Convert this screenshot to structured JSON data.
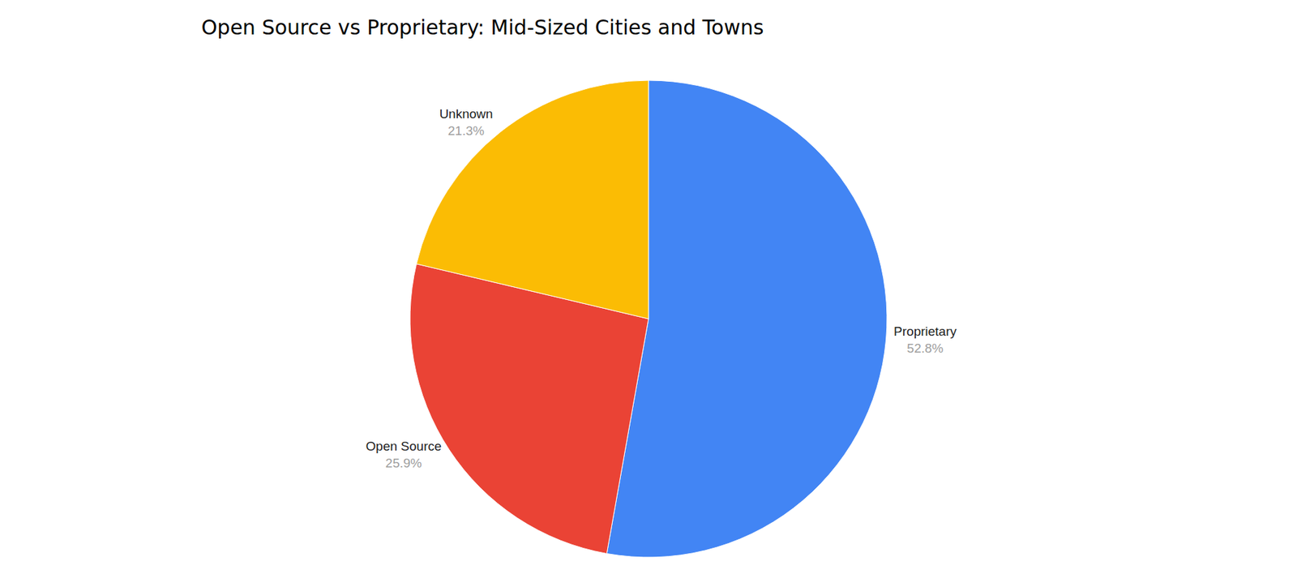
{
  "chart_data": {
    "type": "pie",
    "title": "Open Source vs Proprietary: Mid-Sized Cities and Towns",
    "categories": [
      "Proprietary",
      "Open Source",
      "Unknown"
    ],
    "values": [
      52.8,
      25.9,
      21.3
    ],
    "value_labels": [
      "52.8%",
      "25.9%",
      "21.3%"
    ],
    "colors": [
      "#4285f4",
      "#ea4335",
      "#fbbc04"
    ],
    "data_labels": true,
    "legend": "none"
  }
}
